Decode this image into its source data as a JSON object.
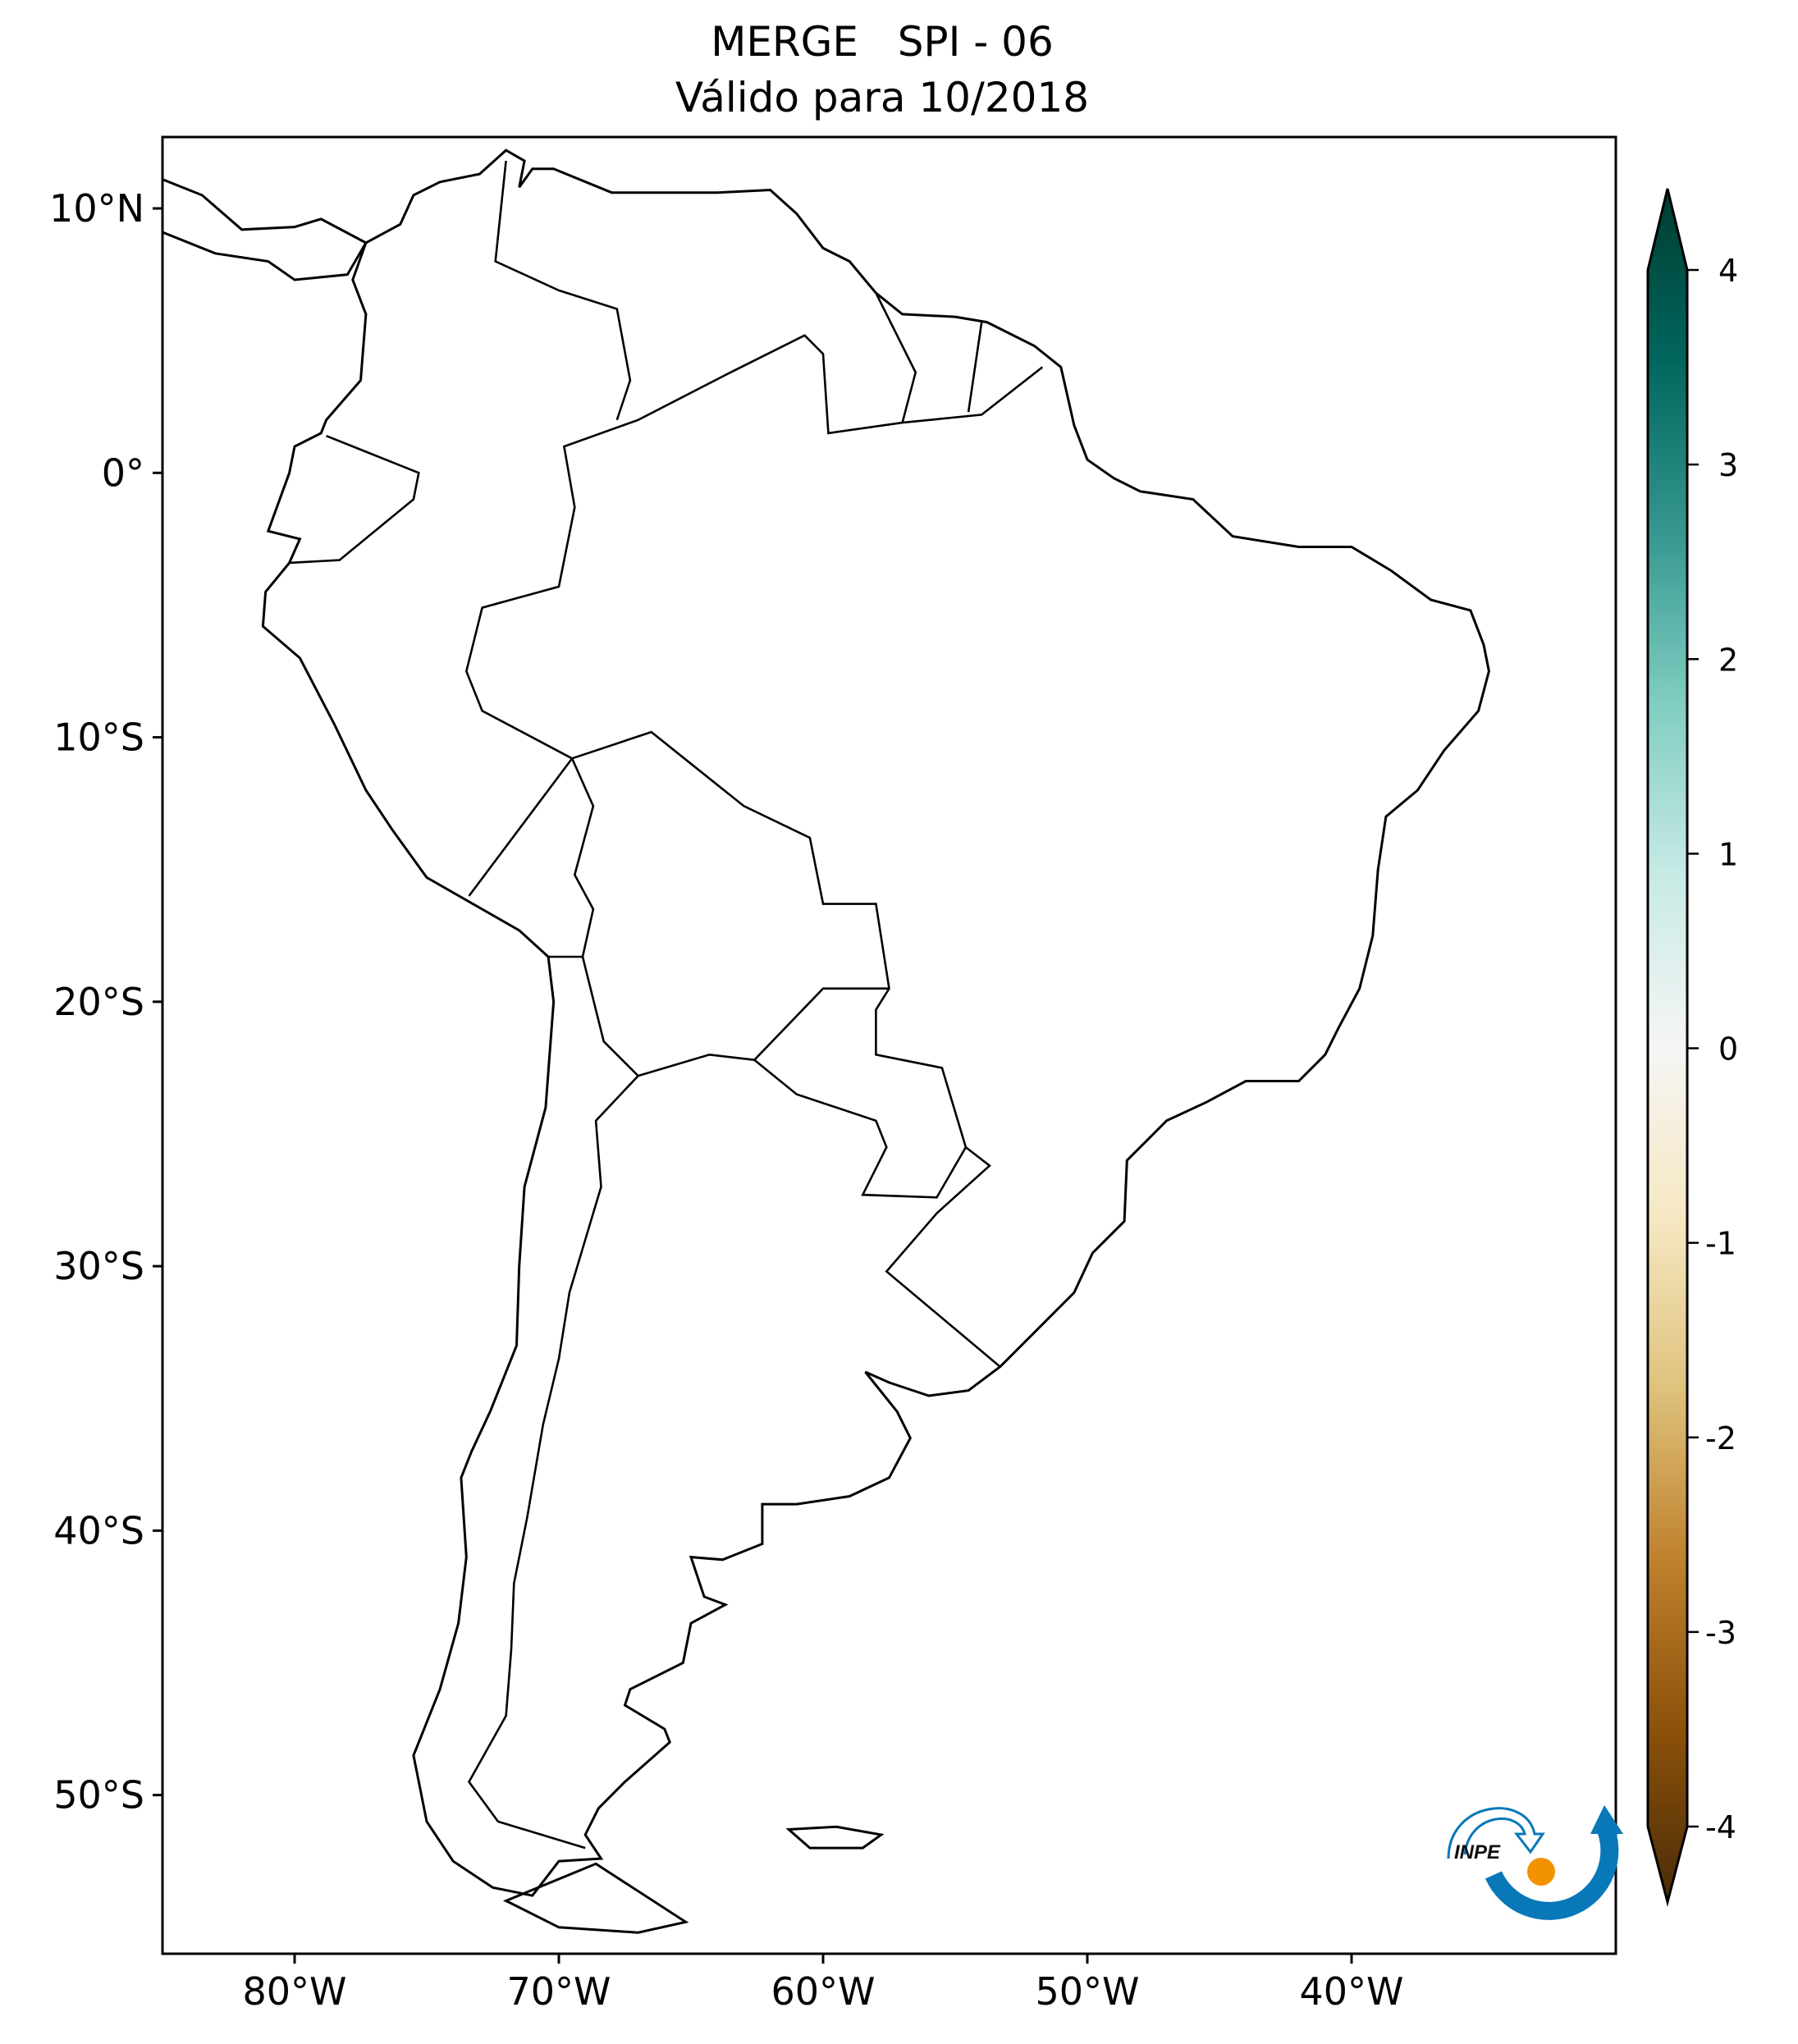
{
  "title": {
    "line1": "MERGE   SPI - 06",
    "line2": "Válido para 10/2018"
  },
  "map": {
    "projection": "PlateCarree",
    "lon_range": [
      -85,
      -30
    ],
    "lat_range": [
      -56,
      12.7
    ],
    "lon_ticks": [
      {
        "value": -80,
        "label": "80°W"
      },
      {
        "value": -70,
        "label": "70°W"
      },
      {
        "value": -60,
        "label": "60°W"
      },
      {
        "value": -50,
        "label": "50°W"
      },
      {
        "value": -40,
        "label": "40°W"
      }
    ],
    "lat_ticks": [
      {
        "value": 10,
        "label": "10°N"
      },
      {
        "value": 0,
        "label": "0°"
      },
      {
        "value": -10,
        "label": "10°S"
      },
      {
        "value": -20,
        "label": "20°S"
      },
      {
        "value": -30,
        "label": "30°S"
      },
      {
        "value": -40,
        "label": "40°S"
      },
      {
        "value": -50,
        "label": "50°S"
      }
    ]
  },
  "colorbar": {
    "range": [
      -4,
      4
    ],
    "extend": "both",
    "colormap": "BrBG",
    "colors": [
      "#4a2c07",
      "#8c510a",
      "#bf812d",
      "#dfc27d",
      "#f6e8c3",
      "#f5f5f5",
      "#c7eae5",
      "#80cdc1",
      "#35978f",
      "#01665e",
      "#003c30"
    ],
    "ticks": [
      {
        "value": 4,
        "label": "4"
      },
      {
        "value": 3,
        "label": "3"
      },
      {
        "value": 2,
        "label": "2"
      },
      {
        "value": 1,
        "label": "1"
      },
      {
        "value": 0,
        "label": "0"
      },
      {
        "value": -1,
        "label": "-1"
      },
      {
        "value": -2,
        "label": "-2"
      },
      {
        "value": -3,
        "label": "-3"
      },
      {
        "value": -4,
        "label": "-4"
      }
    ]
  },
  "logo": {
    "text": "INPE",
    "colors": {
      "arc": "#0878b8",
      "sun": "#f39200"
    }
  }
}
